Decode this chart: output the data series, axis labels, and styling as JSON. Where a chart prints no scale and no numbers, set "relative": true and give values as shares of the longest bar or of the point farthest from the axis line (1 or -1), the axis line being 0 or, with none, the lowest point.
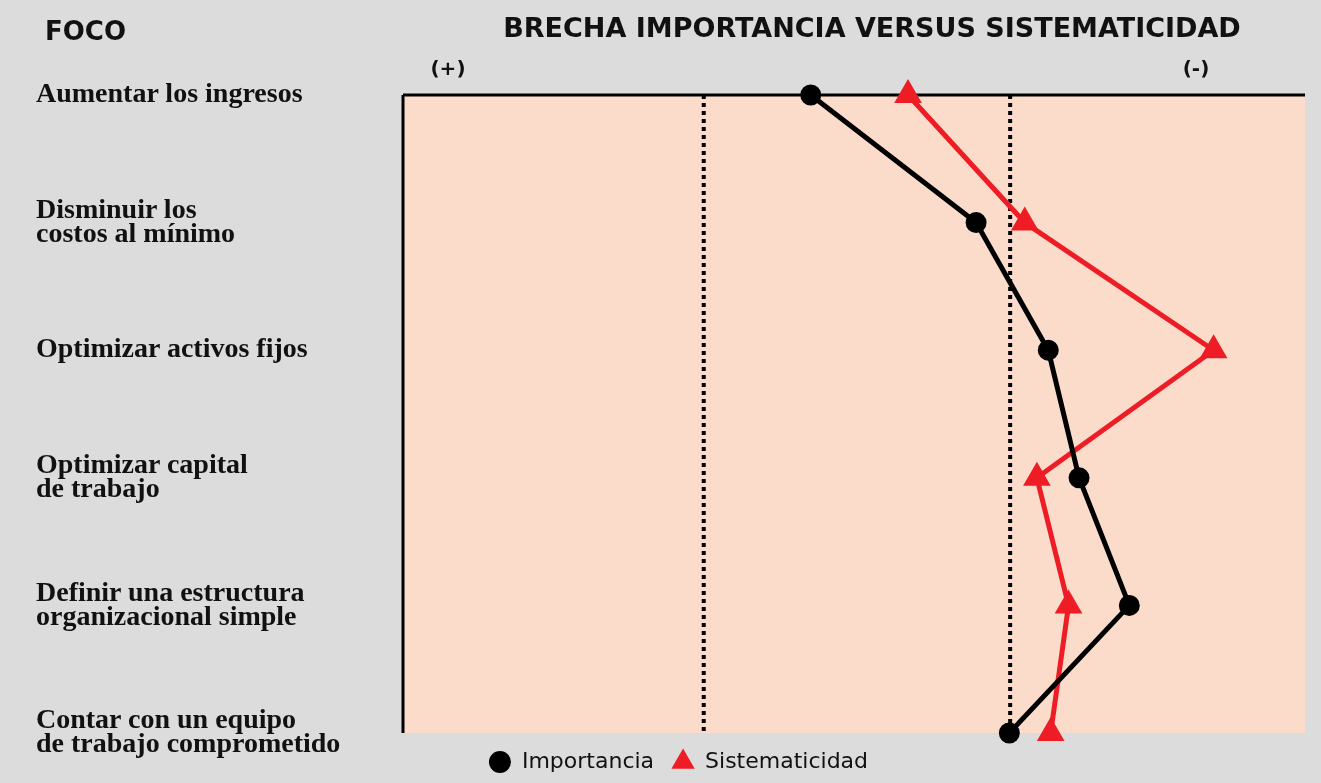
{
  "chart_data": {
    "type": "line",
    "title": "BRECHA IMPORTANCIA VERSUS SISTEMATICIDAD",
    "ylabel": "FOCO",
    "orientation": "horizontal",
    "relative": true,
    "categories": [
      "Aumentar los ingresos",
      "Disminuir los\ncostos al mínimo",
      "Optimizar activos fijos",
      "Optimizar capital\nde trabajo",
      "Definir una estructura\norganizacional simple",
      "Contar con un equipo\nde trabajo comprometido"
    ],
    "series": [
      {
        "name": "Importancia",
        "color": "#000000",
        "marker": "circle",
        "values": [
          0.503,
          0.707,
          0.796,
          0.834,
          0.896,
          0.748
        ]
      },
      {
        "name": "Sistematicidad",
        "color": "#ee1c25",
        "marker": "triangle",
        "values": [
          0.623,
          0.767,
          1.0,
          0.782,
          0.821,
          0.799
        ]
      }
    ],
    "ref_lines": [
      {
        "axis": "x",
        "value": 0.371,
        "line_style": "dotted",
        "color": "#000000"
      },
      {
        "axis": "x",
        "value": 0.749,
        "line_style": "dotted",
        "color": "#000000"
      }
    ],
    "annotations": [
      "(+)",
      "(-)"
    ],
    "legend": "bottom",
    "line_style": "solid"
  }
}
